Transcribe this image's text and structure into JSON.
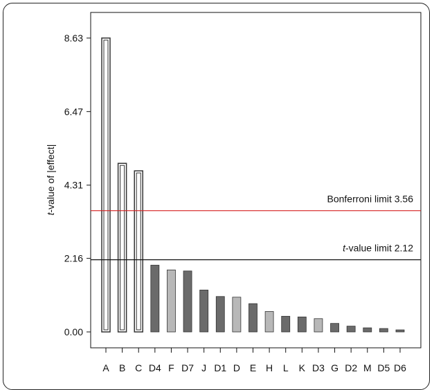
{
  "chart_data": {
    "type": "bar",
    "title": "",
    "xlabel": "",
    "ylabel_italic": "t",
    "ylabel_rest": "-value of |effect|",
    "categories": [
      "A",
      "B",
      "C",
      "D4",
      "F",
      "D7",
      "J",
      "D1",
      "D",
      "E",
      "H",
      "L",
      "K",
      "D3",
      "G",
      "D2",
      "M",
      "D5",
      "D6"
    ],
    "values": [
      8.63,
      4.95,
      4.73,
      1.96,
      1.82,
      1.79,
      1.23,
      1.04,
      1.02,
      0.83,
      0.6,
      0.46,
      0.44,
      0.39,
      0.25,
      0.17,
      0.12,
      0.1,
      0.06
    ],
    "bar_styles": [
      "outline",
      "outline",
      "outline",
      "dark",
      "light",
      "dark",
      "dark",
      "dark",
      "light",
      "dark",
      "light",
      "dark",
      "dark",
      "light",
      "dark",
      "dark",
      "dark",
      "dark",
      "dark"
    ],
    "yticks": [
      "0.00",
      "2.16",
      "4.31",
      "6.47",
      "8.63"
    ],
    "ytick_values": [
      0.0,
      2.16,
      4.31,
      6.47,
      8.63
    ],
    "ylim": [
      0,
      9.1
    ],
    "reference_lines": [
      {
        "value": 3.56,
        "color": "#d62020",
        "label": "Bonferroni limit 3.56",
        "label_italic": "",
        "label_rest": "Bonferroni limit 3.56"
      },
      {
        "value": 2.12,
        "color": "#111111",
        "label": "t-value limit 2.12",
        "label_italic": "t",
        "label_rest": "-value limit 2.12"
      }
    ],
    "colors": {
      "dark": "#6b6b6b",
      "light": "#b8b8b8",
      "outline_fill": "#ffffff",
      "outline_stroke": "#333333"
    }
  }
}
